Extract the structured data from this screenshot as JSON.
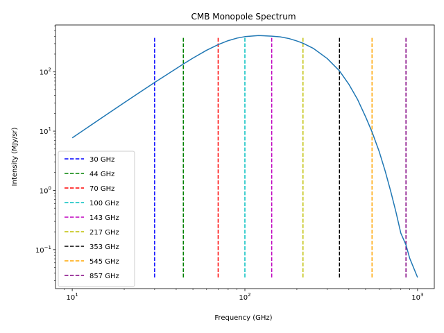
{
  "chart_data": {
    "type": "line",
    "title": "CMB Monopole Spectrum",
    "xlabel": "Frequency (GHz)",
    "ylabel": "Intensity (MJy/sr)",
    "xscale": "log",
    "yscale": "log",
    "xlim": [
      8.0,
      1250.0
    ],
    "ylim": [
      0.022,
      620.0
    ],
    "grid": false,
    "legend_position": "lower-left",
    "x_ticks": [
      {
        "value": 10,
        "base": "10",
        "exp": "1"
      },
      {
        "value": 100,
        "base": "10",
        "exp": "2"
      },
      {
        "value": 1000,
        "base": "10",
        "exp": "3"
      }
    ],
    "y_ticks": [
      {
        "value": 0.1,
        "base": "10",
        "exp": "−1"
      },
      {
        "value": 1,
        "base": "10",
        "exp": "0"
      },
      {
        "value": 10,
        "base": "10",
        "exp": "1"
      },
      {
        "value": 100,
        "base": "10",
        "exp": "2"
      }
    ],
    "series": [
      {
        "color": "#1f77b4",
        "style": "solid",
        "points": [
          [
            10,
            7.7
          ],
          [
            15,
            17.2
          ],
          [
            20,
            30.3
          ],
          [
            30,
            66.4
          ],
          [
            44,
            136
          ],
          [
            50,
            171
          ],
          [
            60,
            232
          ],
          [
            70,
            289
          ],
          [
            80,
            337
          ],
          [
            90,
            372
          ],
          [
            100,
            394
          ],
          [
            120,
            411
          ],
          [
            143,
            402
          ],
          [
            160,
            391
          ],
          [
            180,
            366
          ],
          [
            200,
            333
          ],
          [
            217,
            305
          ],
          [
            250,
            248
          ],
          [
            300,
            168
          ],
          [
            353,
            104
          ],
          [
            400,
            62
          ],
          [
            450,
            34
          ],
          [
            500,
            17.5
          ],
          [
            545,
            9.7
          ],
          [
            600,
            4.5
          ],
          [
            650,
            2.1
          ],
          [
            700,
            0.95
          ],
          [
            750,
            0.43
          ],
          [
            800,
            0.19
          ],
          [
            857,
            0.12
          ],
          [
            900,
            0.072
          ],
          [
            1000,
            0.034
          ]
        ]
      }
    ],
    "vlines": [
      {
        "label": "30 GHz",
        "x": 30,
        "color": "#0000ff"
      },
      {
        "label": "44 GHz",
        "x": 44,
        "color": "#008000"
      },
      {
        "label": "70 GHz",
        "x": 70,
        "color": "#ff0000"
      },
      {
        "label": "100 GHz",
        "x": 100,
        "color": "#00bfbf"
      },
      {
        "label": "143 GHz",
        "x": 143,
        "color": "#bf00bf"
      },
      {
        "label": "217 GHz",
        "x": 217,
        "color": "#bfbf00"
      },
      {
        "label": "353 GHz",
        "x": 353,
        "color": "#000000"
      },
      {
        "label": "545 GHz",
        "x": 545,
        "color": "#ffa500"
      },
      {
        "label": "857 GHz",
        "x": 857,
        "color": "#800080"
      }
    ],
    "vline_range": [
      0.034,
      394
    ]
  }
}
